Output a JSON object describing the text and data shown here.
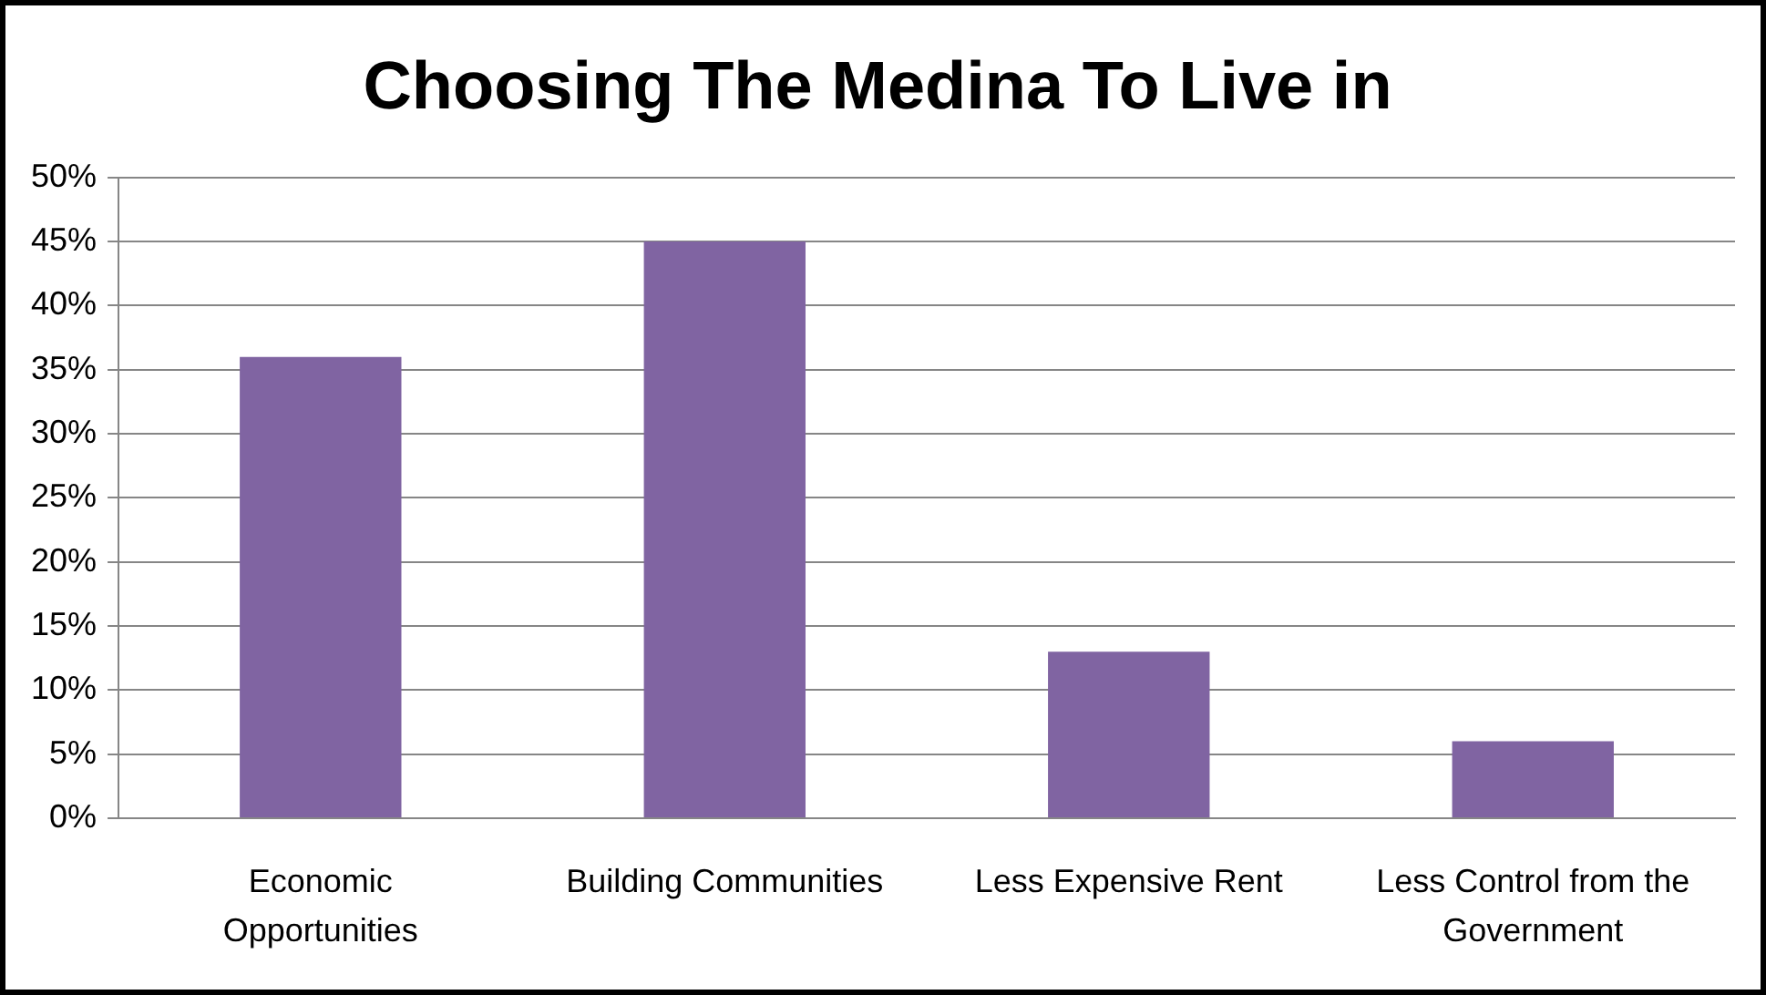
{
  "chart_data": {
    "type": "bar",
    "title": "Choosing The Medina To Live in",
    "categories": [
      "Economic Opportunities",
      "Building Communities",
      "Less Expensive Rent",
      "Less Control from the Government"
    ],
    "values": [
      36,
      45,
      13,
      6
    ],
    "color": "#8064a2",
    "ylim": [
      0,
      50
    ],
    "yticks": [
      {
        "value": 0,
        "label": "0%"
      },
      {
        "value": 5,
        "label": "5%"
      },
      {
        "value": 10,
        "label": "10%"
      },
      {
        "value": 15,
        "label": "15%"
      },
      {
        "value": 20,
        "label": "20%"
      },
      {
        "value": 25,
        "label": "25%"
      },
      {
        "value": 30,
        "label": "30%"
      },
      {
        "value": 35,
        "label": "35%"
      },
      {
        "value": 40,
        "label": "40%"
      },
      {
        "value": 45,
        "label": "45%"
      },
      {
        "value": 50,
        "label": "50%"
      }
    ],
    "grid": "y",
    "legend": false
  }
}
